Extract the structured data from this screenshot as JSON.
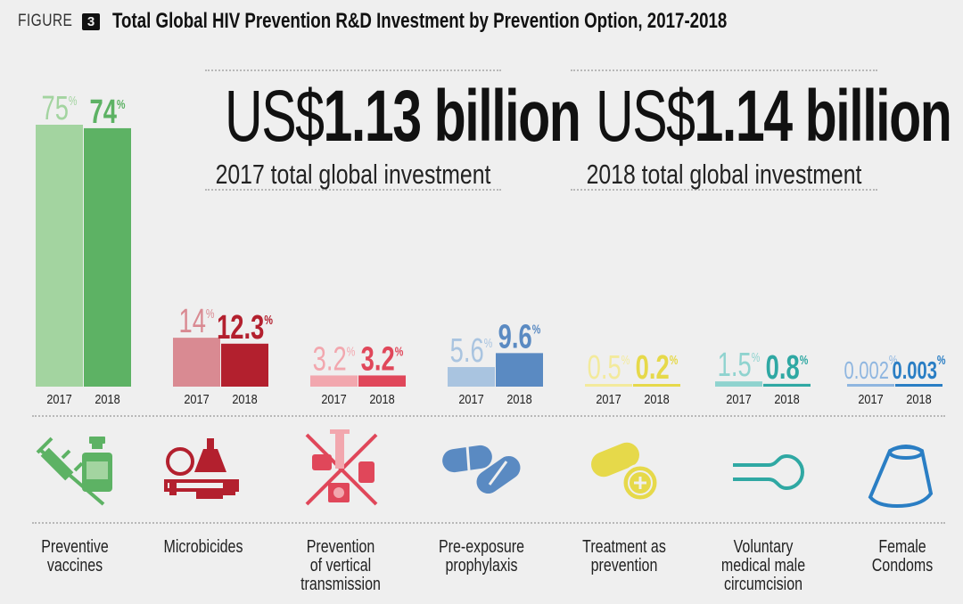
{
  "header": {
    "figure_label": "FIGURE",
    "figure_number": "3",
    "title": "Total Global HIV Prevention R&D Investment by Prevention Option, 2017-2018"
  },
  "totals": [
    {
      "currency": "US$",
      "amount": "1.13 billion",
      "caption": "2017 total global investment"
    },
    {
      "currency": "US$",
      "amount": "1.14 billion",
      "caption": "2018 total global investment"
    }
  ],
  "chart_data": {
    "type": "bar",
    "title": "Total Global HIV Prevention R&D Investment by Prevention Option, 2017-2018",
    "unit": "%",
    "series_years": [
      "2017",
      "2018"
    ],
    "categories": [
      {
        "name": "Preventive vaccines",
        "label_lines": [
          "Preventive",
          "vaccines"
        ],
        "icon": "syringe-vial-icon",
        "values": [
          75,
          74
        ],
        "value_labels": [
          "75",
          "74"
        ],
        "colors": [
          "#a3d4a0",
          "#5db264"
        ]
      },
      {
        "name": "Microbicides",
        "label_lines": [
          "Microbicides"
        ],
        "icon": "microbicide-applicator-icon",
        "values": [
          14,
          12.3
        ],
        "value_labels": [
          "14",
          "12.3"
        ],
        "colors": [
          "#d98a92",
          "#b3202e"
        ]
      },
      {
        "name": "Prevention of vertical transmission",
        "label_lines": [
          "Prevention",
          "of vertical",
          "transmission"
        ],
        "icon": "crossed-syringe-icon",
        "values": [
          3.2,
          3.2
        ],
        "value_labels": [
          "3.2",
          "3.2"
        ],
        "colors": [
          "#f2a7ae",
          "#e0475a"
        ]
      },
      {
        "name": "Pre-exposure prophylaxis",
        "label_lines": [
          "Pre-exposure",
          "prophylaxis"
        ],
        "icon": "pills-icon",
        "values": [
          5.6,
          9.6
        ],
        "value_labels": [
          "5.6",
          "9.6"
        ],
        "colors": [
          "#a9c4e0",
          "#5a8ac2"
        ]
      },
      {
        "name": "Treatment as prevention",
        "label_lines": [
          "Treatment as",
          "prevention"
        ],
        "icon": "capsule-tablet-icon",
        "values": [
          0.5,
          0.2
        ],
        "value_labels": [
          "0.5",
          "0.2"
        ],
        "colors": [
          "#f3ea9c",
          "#e6d94a"
        ]
      },
      {
        "name": "Voluntary medical male circumcision",
        "label_lines": [
          "Voluntary",
          "medical male",
          "circumcision"
        ],
        "icon": "circumcision-device-icon",
        "values": [
          1.5,
          0.8
        ],
        "value_labels": [
          "1.5",
          "0.8"
        ],
        "colors": [
          "#8fd3cf",
          "#2fa8a3"
        ]
      },
      {
        "name": "Female Condoms",
        "label_lines": [
          "Female",
          "Condoms"
        ],
        "icon": "female-condom-icon",
        "values": [
          0.002,
          0.003
        ],
        "value_labels": [
          "0.002",
          "0.003"
        ],
        "colors": [
          "#8fb6e0",
          "#2a7ec4"
        ]
      }
    ]
  }
}
